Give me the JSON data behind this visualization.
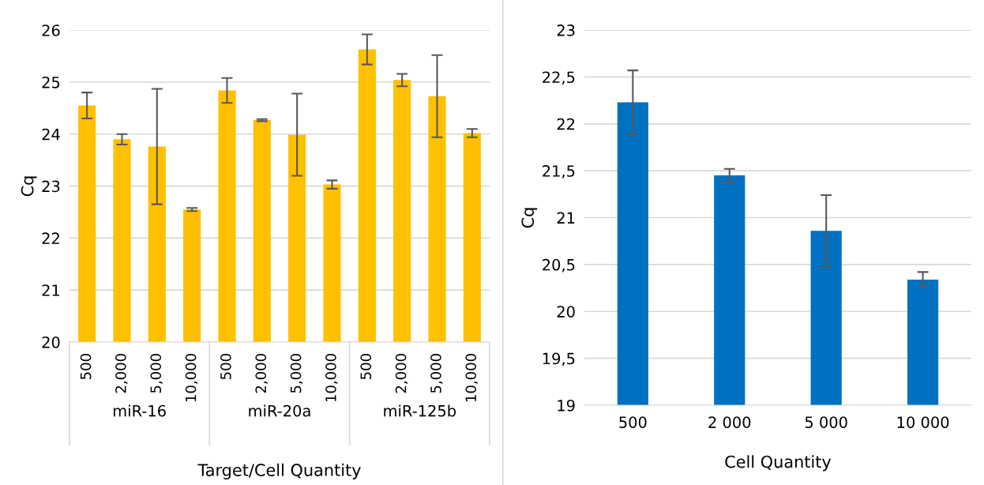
{
  "chart_data": [
    {
      "type": "bar",
      "xlabel": "Target/Cell Quantity",
      "ylabel": "Cq",
      "categories": [
        "500",
        "2,000",
        "5,000",
        "10,000",
        "500",
        "2,000",
        "5,000",
        "10,000",
        "500",
        "2,000",
        "5,000",
        "10,000"
      ],
      "values": [
        24.55,
        23.9,
        23.76,
        22.55,
        24.84,
        24.27,
        23.99,
        23.03,
        25.63,
        25.04,
        24.73,
        24.02
      ],
      "errors": [
        0.25,
        0.1,
        1.11,
        0.03,
        0.24,
        0.02,
        0.79,
        0.08,
        0.29,
        0.12,
        0.79,
        0.08
      ],
      "color": "#ffc000",
      "annotations": [
        "miR-16",
        "miR-20a",
        "miR-125b"
      ],
      "ylim": [
        20,
        26
      ],
      "yticks": [
        20,
        21,
        22,
        23,
        24,
        25,
        26
      ],
      "grid": "y"
    },
    {
      "type": "bar",
      "xlabel": "Cell Quantity",
      "ylabel": "Cq",
      "categories": [
        "500",
        "2 000",
        "5 000",
        "10 000"
      ],
      "values": [
        22.23,
        21.45,
        20.86,
        20.34
      ],
      "errors": [
        0.34,
        0.07,
        0.38,
        0.08
      ],
      "color": "#0070c0",
      "ylim": [
        19,
        23
      ],
      "yticks": [
        19,
        {
          "value": 19.5,
          "label": "19,5"
        },
        20,
        {
          "value": 20.5,
          "label": "20,5"
        },
        21,
        {
          "value": 21.5,
          "label": "21,5"
        },
        22,
        {
          "value": 22.5,
          "label": "22,5"
        },
        23
      ],
      "grid": "y"
    }
  ]
}
